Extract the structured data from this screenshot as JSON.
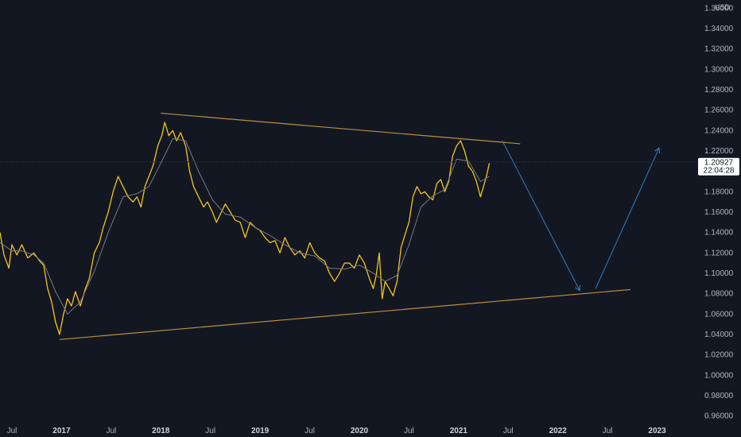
{
  "chart_data": {
    "type": "line",
    "currency": "USD",
    "y_ticks": [
      "1.36000",
      "1.34000",
      "1.32000",
      "1.30000",
      "1.28000",
      "1.26000",
      "1.24000",
      "1.22000",
      "1.20000",
      "1.18000",
      "1.16000",
      "1.14000",
      "1.12000",
      "1.10000",
      "1.08000",
      "1.06000",
      "1.04000",
      "1.02000",
      "1.00000",
      "0.98000",
      "0.96000"
    ],
    "x_ticks": [
      {
        "label": "Jul",
        "date": 2016.5,
        "year": false
      },
      {
        "label": "2017",
        "date": 2017.0,
        "year": true
      },
      {
        "label": "Jul",
        "date": 2017.5,
        "year": false
      },
      {
        "label": "2018",
        "date": 2018.0,
        "year": true
      },
      {
        "label": "Jul",
        "date": 2018.5,
        "year": false
      },
      {
        "label": "2019",
        "date": 2019.0,
        "year": true
      },
      {
        "label": "Jul",
        "date": 2019.5,
        "year": false
      },
      {
        "label": "2020",
        "date": 2020.0,
        "year": true
      },
      {
        "label": "Jul",
        "date": 2020.5,
        "year": false
      },
      {
        "label": "2021",
        "date": 2021.0,
        "year": true
      },
      {
        "label": "Jul",
        "date": 2021.5,
        "year": false
      },
      {
        "label": "2022",
        "date": 2022.0,
        "year": true
      },
      {
        "label": "Jul",
        "date": 2022.5,
        "year": false
      },
      {
        "label": "2023",
        "date": 2023.0,
        "year": true
      }
    ],
    "xlim": [
      2016.38,
      2023.38
    ],
    "ylim": [
      0.955,
      1.368
    ],
    "grid": false,
    "current_price": {
      "value": 1.20927,
      "label": "1.20927",
      "countdown": "22:04:28"
    },
    "series": [
      {
        "color": "#f5c518",
        "x": [
          2016.38,
          2016.42,
          2016.47,
          2016.5,
          2016.55,
          2016.6,
          2016.66,
          2016.72,
          2016.78,
          2016.82,
          2016.86,
          2016.9,
          2016.94,
          2016.98,
          2017.02,
          2017.06,
          2017.1,
          2017.14,
          2017.19,
          2017.24,
          2017.28,
          2017.33,
          2017.38,
          2017.42,
          2017.47,
          2017.52,
          2017.57,
          2017.62,
          2017.67,
          2017.72,
          2017.76,
          2017.8,
          2017.84,
          2017.88,
          2017.92,
          2017.97,
          2018.01,
          2018.04,
          2018.08,
          2018.12,
          2018.16,
          2018.2,
          2018.25,
          2018.29,
          2018.33,
          2018.38,
          2018.43,
          2018.47,
          2018.52,
          2018.56,
          2018.6,
          2018.65,
          2018.7,
          2018.75,
          2018.8,
          2018.85,
          2018.9,
          2018.95,
          2019.0,
          2019.05,
          2019.1,
          2019.15,
          2019.2,
          2019.25,
          2019.3,
          2019.35,
          2019.4,
          2019.45,
          2019.5,
          2019.55,
          2019.6,
          2019.65,
          2019.7,
          2019.75,
          2019.8,
          2019.85,
          2019.9,
          2019.95,
          2020.0,
          2020.05,
          2020.1,
          2020.14,
          2020.17,
          2020.2,
          2020.23,
          2020.26,
          2020.3,
          2020.34,
          2020.38,
          2020.42,
          2020.46,
          2020.5,
          2020.54,
          2020.58,
          2020.62,
          2020.66,
          2020.7,
          2020.74,
          2020.78,
          2020.82,
          2020.86,
          2020.9,
          2020.94,
          2020.98,
          2021.02,
          2021.06,
          2021.1,
          2021.14,
          2021.18,
          2021.22,
          2021.25,
          2021.28,
          2021.31
        ],
        "y": [
          1.14,
          1.118,
          1.105,
          1.128,
          1.118,
          1.128,
          1.115,
          1.12,
          1.112,
          1.108,
          1.085,
          1.072,
          1.052,
          1.04,
          1.06,
          1.075,
          1.068,
          1.082,
          1.068,
          1.085,
          1.095,
          1.12,
          1.13,
          1.145,
          1.16,
          1.18,
          1.195,
          1.185,
          1.175,
          1.17,
          1.175,
          1.165,
          1.185,
          1.195,
          1.205,
          1.225,
          1.235,
          1.248,
          1.235,
          1.24,
          1.23,
          1.238,
          1.225,
          1.2,
          1.185,
          1.175,
          1.165,
          1.17,
          1.16,
          1.15,
          1.158,
          1.168,
          1.16,
          1.152,
          1.15,
          1.135,
          1.15,
          1.145,
          1.142,
          1.135,
          1.13,
          1.132,
          1.12,
          1.135,
          1.125,
          1.118,
          1.122,
          1.115,
          1.13,
          1.12,
          1.115,
          1.112,
          1.1,
          1.092,
          1.1,
          1.11,
          1.11,
          1.105,
          1.118,
          1.11,
          1.095,
          1.085,
          1.098,
          1.12,
          1.075,
          1.092,
          1.085,
          1.078,
          1.092,
          1.125,
          1.138,
          1.15,
          1.175,
          1.185,
          1.178,
          1.18,
          1.175,
          1.172,
          1.188,
          1.192,
          1.18,
          1.19,
          1.215,
          1.225,
          1.23,
          1.22,
          1.205,
          1.2,
          1.19,
          1.175,
          1.185,
          1.195,
          1.208
        ]
      },
      {
        "color": "#787b86",
        "x": [
          2016.38,
          2016.5,
          2016.6,
          2016.72,
          2016.82,
          2016.94,
          2017.06,
          2017.19,
          2017.33,
          2017.47,
          2017.62,
          2017.76,
          2017.88,
          2018.01,
          2018.12,
          2018.25,
          2018.38,
          2018.52,
          2018.65,
          2018.8,
          2018.95,
          2019.1,
          2019.25,
          2019.4,
          2019.55,
          2019.7,
          2019.85,
          2020.0,
          2020.14,
          2020.26,
          2020.38,
          2020.5,
          2020.62,
          2020.74,
          2020.86,
          2020.98,
          2021.1,
          2021.22,
          2021.31
        ],
        "y": [
          1.13,
          1.122,
          1.122,
          1.118,
          1.11,
          1.082,
          1.06,
          1.072,
          1.102,
          1.14,
          1.175,
          1.178,
          1.185,
          1.21,
          1.232,
          1.23,
          1.2,
          1.172,
          1.158,
          1.155,
          1.145,
          1.137,
          1.128,
          1.12,
          1.117,
          1.105,
          1.104,
          1.108,
          1.1,
          1.092,
          1.098,
          1.128,
          1.165,
          1.176,
          1.182,
          1.212,
          1.21,
          1.19,
          1.195
        ]
      }
    ],
    "trendlines": [
      {
        "color": "#b8913d",
        "points": [
          [
            2018.0,
            1.257
          ],
          [
            2021.62,
            1.227
          ]
        ]
      },
      {
        "color": "#b8913d",
        "points": [
          [
            2016.98,
            1.035
          ],
          [
            2022.73,
            1.084
          ]
        ]
      }
    ],
    "projection": {
      "color": "#2f7fc1",
      "points": [
        [
          2021.44,
          1.23
        ],
        [
          2022.22,
          1.083
        ],
        [
          2022.38,
          1.085
        ],
        [
          2023.02,
          1.223
        ]
      ]
    }
  }
}
